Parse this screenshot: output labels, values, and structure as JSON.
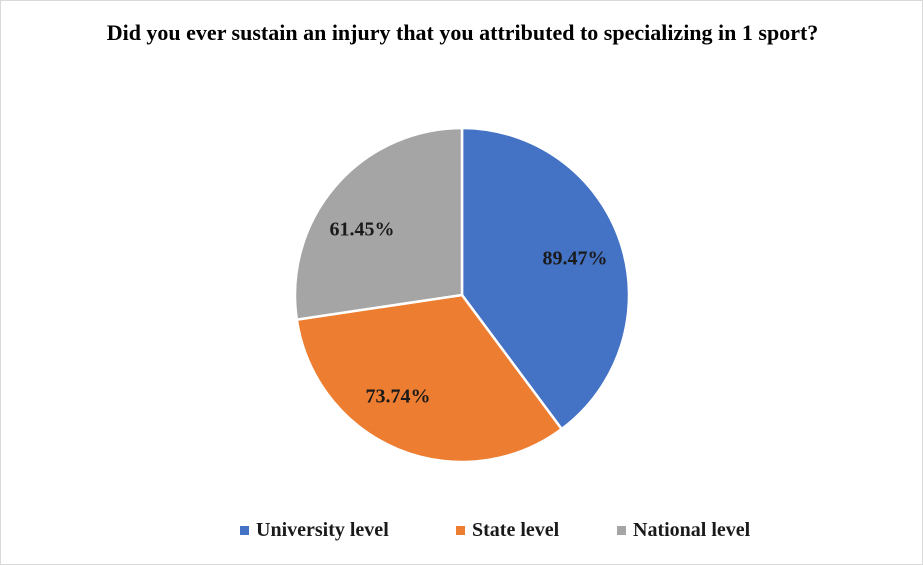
{
  "chart_data": {
    "type": "pie",
    "title": "Did you ever sustain an injury that you attributed to specializing in 1 sport?",
    "categories": [
      "University level",
      "State level",
      "National level"
    ],
    "values": [
      89.47,
      73.74,
      61.45
    ],
    "value_labels": [
      "89.47%",
      "73.74%",
      "61.45%"
    ],
    "colors": [
      "#4472C4",
      "#ED7D31",
      "#A5A5A5"
    ],
    "legend": "bottom",
    "start_angle": "top, clockwise"
  }
}
